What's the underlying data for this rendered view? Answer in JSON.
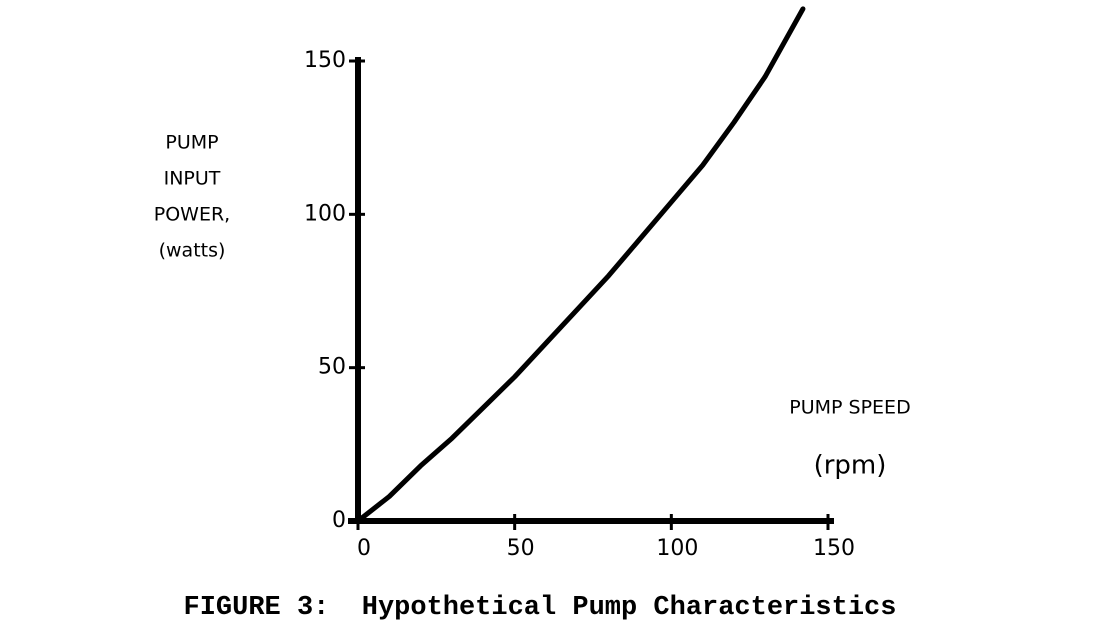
{
  "chart_data": {
    "type": "line",
    "y_label": [
      "PUMP",
      "INPUT",
      "POWER,",
      "(watts)"
    ],
    "x_label": [
      "PUMP SPEED",
      "(rpm)"
    ],
    "caption": "FIGURE 3:  Hypothetical Pump Characteristics",
    "x": [
      0,
      10,
      20,
      30,
      40,
      50,
      60,
      70,
      80,
      90,
      100,
      110,
      120,
      130,
      142
    ],
    "values": [
      0,
      8,
      18,
      27,
      37,
      47,
      58,
      69,
      80,
      92,
      104,
      116,
      130,
      145,
      167
    ],
    "color": "#000000",
    "xlim": [
      0,
      150
    ],
    "ylim": [
      0,
      150
    ],
    "xticks": [
      0,
      50,
      100,
      150
    ],
    "yticks": [
      0,
      50,
      100,
      150
    ]
  }
}
